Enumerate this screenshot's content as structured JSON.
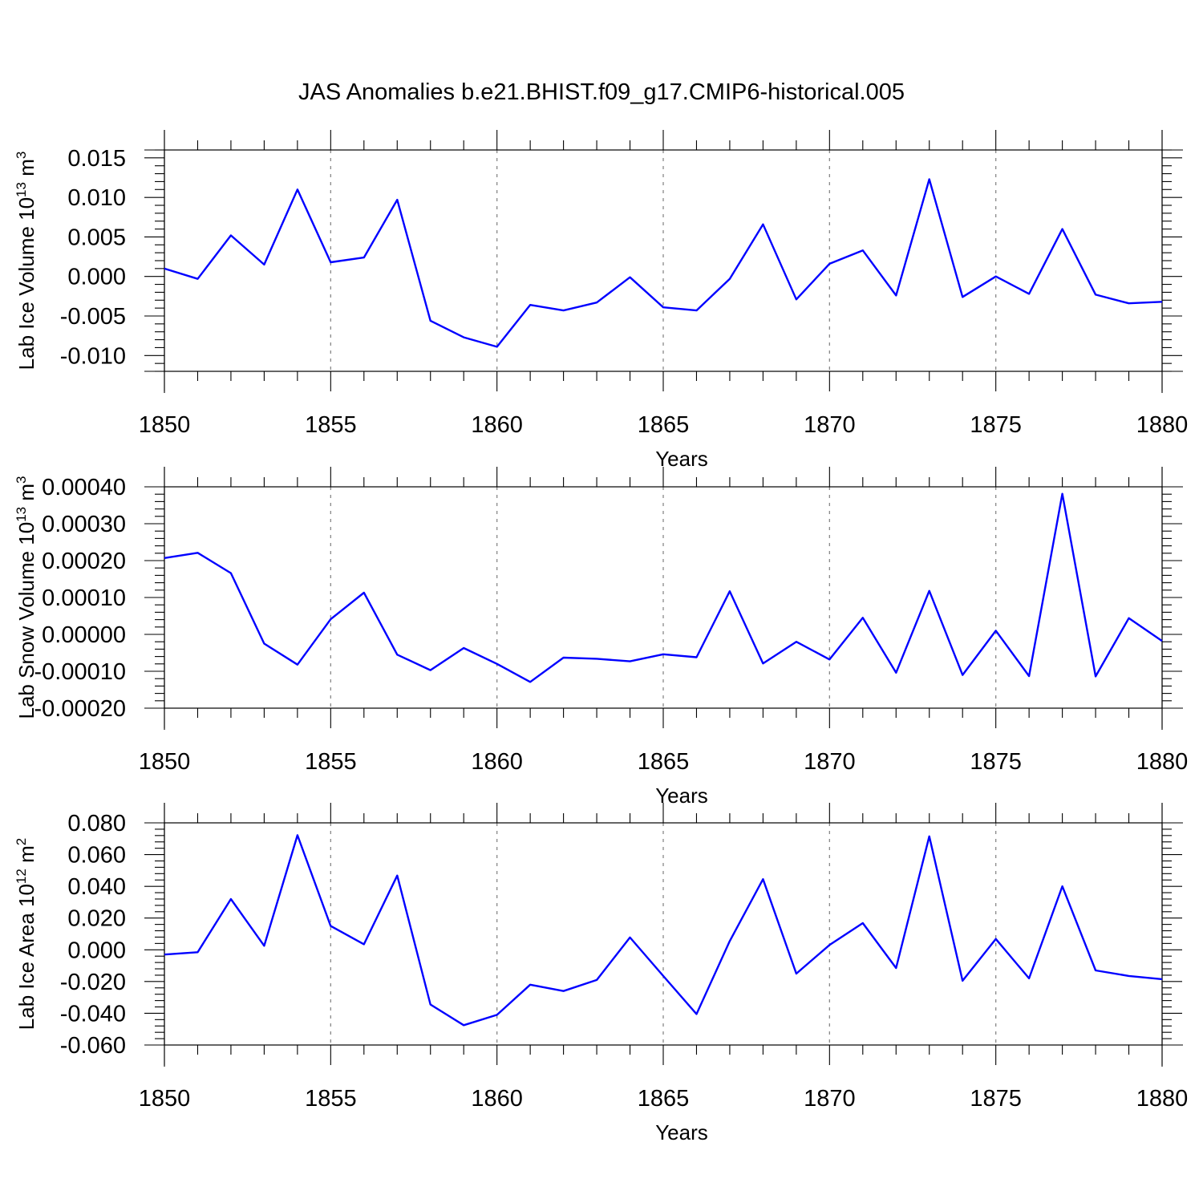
{
  "title": "JAS Anomalies b.e21.BHIST.f09_g17.CMIP6-historical.005",
  "colors": {
    "series": "#0000ff",
    "axis": "#000000",
    "grid": "#888888"
  },
  "chart_data": [
    {
      "type": "line",
      "ylabel": "Lab Ice Volume 10",
      "ylabel_exp": "13",
      "ylabel_unit": " m",
      "ylabel_unit_exp": "3",
      "xlabel": "Years",
      "xlim": [
        1850,
        1880
      ],
      "ylim": [
        -0.012,
        0.016
      ],
      "xticks": [
        "1850",
        "1855",
        "1860",
        "1865",
        "1870",
        "1875",
        "1880"
      ],
      "yticks": [
        "0.015",
        "0.010",
        "0.005",
        "0.000",
        "-0.005",
        "-0.010"
      ],
      "ytick_values": [
        0.015,
        0.01,
        0.005,
        0.0,
        -0.005,
        -0.01
      ],
      "grid": "vertical dashed at major x ticks",
      "x": [
        1850,
        1851,
        1852,
        1853,
        1854,
        1855,
        1856,
        1857,
        1858,
        1859,
        1860,
        1861,
        1862,
        1863,
        1864,
        1865,
        1866,
        1867,
        1868,
        1869,
        1870,
        1871,
        1872,
        1873,
        1874,
        1875,
        1876,
        1877,
        1878,
        1879,
        1880
      ],
      "values": [
        0.001,
        -0.0003,
        0.0052,
        0.0015,
        0.011,
        0.0018,
        0.0024,
        0.0097,
        -0.0056,
        -0.0077,
        -0.0089,
        -0.0036,
        -0.0043,
        -0.0033,
        -0.0001,
        -0.0039,
        -0.0043,
        -0.0003,
        0.0066,
        -0.0029,
        0.0016,
        0.0033,
        -0.0024,
        0.0123,
        -0.0026,
        0.0,
        -0.0022,
        0.006,
        -0.0023,
        -0.0034,
        -0.0032
      ]
    },
    {
      "type": "line",
      "ylabel": "Lab Snow Volume 10",
      "ylabel_exp": "13",
      "ylabel_unit": " m",
      "ylabel_unit_exp": "3",
      "xlabel": "Years",
      "xlim": [
        1850,
        1880
      ],
      "ylim": [
        -0.0002,
        0.0004
      ],
      "xticks": [
        "1850",
        "1855",
        "1860",
        "1865",
        "1870",
        "1875",
        "1880"
      ],
      "yticks": [
        "0.00040",
        "0.00030",
        "0.00020",
        "0.00010",
        "0.00000",
        "-0.00010",
        "-0.00020"
      ],
      "ytick_values": [
        0.0004,
        0.0003,
        0.0002,
        0.0001,
        0.0,
        -0.0001,
        -0.0002
      ],
      "grid": "vertical dashed at major x ticks",
      "x": [
        1850,
        1851,
        1852,
        1853,
        1854,
        1855,
        1856,
        1857,
        1858,
        1859,
        1860,
        1861,
        1862,
        1863,
        1864,
        1865,
        1866,
        1867,
        1868,
        1869,
        1870,
        1871,
        1872,
        1873,
        1874,
        1875,
        1876,
        1877,
        1878,
        1879,
        1880
      ],
      "values": [
        0.000207,
        0.000221,
        0.000166,
        -2.5e-05,
        -8.2e-05,
        4.1e-05,
        0.000113,
        -5.5e-05,
        -9.7e-05,
        -3.7e-05,
        -8e-05,
        -0.000129,
        -6.3e-05,
        -6.6e-05,
        -7.3e-05,
        -5.4e-05,
        -6.2e-05,
        0.000117,
        -7.9e-05,
        -2e-05,
        -6.8e-05,
        4.5e-05,
        -0.000104,
        0.000118,
        -0.00011,
        1e-05,
        -0.000113,
        0.000381,
        -0.000114,
        4.4e-05,
        -1.8e-05
      ]
    },
    {
      "type": "line",
      "ylabel": "Lab Ice Area 10",
      "ylabel_exp": "12",
      "ylabel_unit": " m",
      "ylabel_unit_exp": "2",
      "xlabel": "Years",
      "xlim": [
        1850,
        1880
      ],
      "ylim": [
        -0.06,
        0.08
      ],
      "xticks": [
        "1850",
        "1855",
        "1860",
        "1865",
        "1870",
        "1875",
        "1880"
      ],
      "yticks": [
        "0.080",
        "0.060",
        "0.040",
        "0.020",
        "0.000",
        "-0.020",
        "-0.040",
        "-0.060"
      ],
      "ytick_values": [
        0.08,
        0.06,
        0.04,
        0.02,
        0.0,
        -0.02,
        -0.04,
        -0.06
      ],
      "grid": "vertical dashed at major x ticks",
      "x": [
        1850,
        1851,
        1852,
        1853,
        1854,
        1855,
        1856,
        1857,
        1858,
        1859,
        1860,
        1861,
        1862,
        1863,
        1864,
        1865,
        1866,
        1867,
        1868,
        1869,
        1870,
        1871,
        1872,
        1873,
        1874,
        1875,
        1876,
        1877,
        1878,
        1879,
        1880
      ],
      "values": [
        -0.003,
        -0.0015,
        0.032,
        0.0025,
        0.0722,
        0.015,
        0.0035,
        0.0468,
        -0.0345,
        -0.0475,
        -0.041,
        -0.022,
        -0.026,
        -0.019,
        0.0078,
        -0.0165,
        -0.0405,
        0.0055,
        0.0445,
        -0.015,
        0.003,
        0.0168,
        -0.0115,
        0.0715,
        -0.0195,
        0.0068,
        -0.018,
        0.04,
        -0.013,
        -0.0165,
        -0.0185
      ]
    }
  ]
}
